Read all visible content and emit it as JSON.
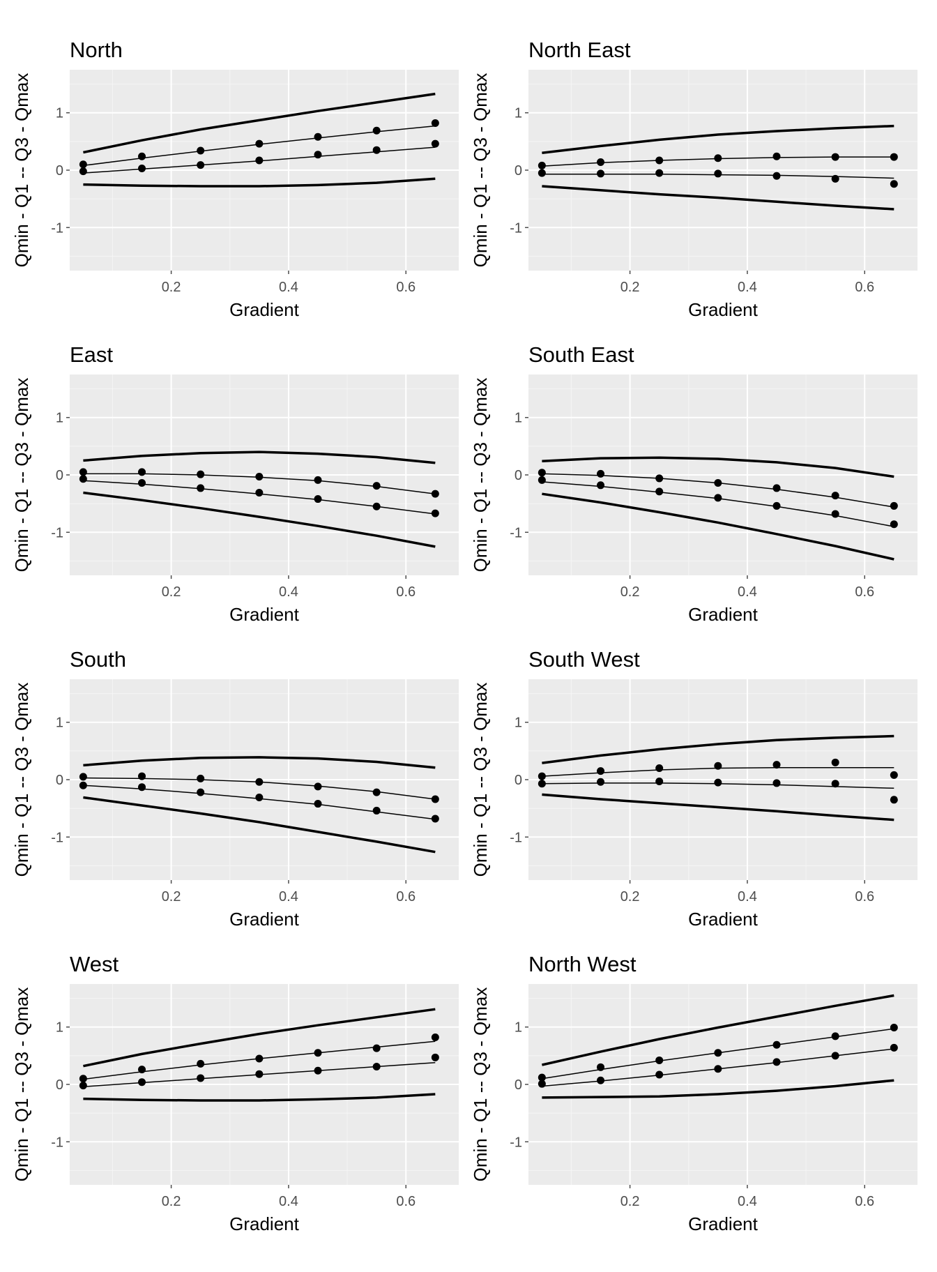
{
  "colors": {
    "panel_background": "#ebebeb",
    "grid_major": "#ffffff",
    "grid_minor": "#f5f5f5",
    "tick_text": "#4d4d4d",
    "ink": "#000000"
  },
  "chart_data": [
    {
      "type": "line",
      "title": "North",
      "xlabel": "Gradient",
      "ylabel": "Qmin - Q1 -- Q3 - Qmax",
      "xlim": [
        0.027,
        0.69
      ],
      "ylim": [
        -1.75,
        1.75
      ],
      "xticks": [
        0.2,
        0.4,
        0.6
      ],
      "yticks": [
        -1,
        0,
        1
      ],
      "grid": true,
      "curves": {
        "x": [
          0.05,
          0.15,
          0.25,
          0.35,
          0.45,
          0.55,
          0.65
        ],
        "qmax": [
          0.31,
          0.52,
          0.71,
          0.87,
          1.03,
          1.18,
          1.33
        ],
        "q3": [
          0.08,
          0.21,
          0.33,
          0.45,
          0.56,
          0.67,
          0.77
        ],
        "q1": [
          -0.05,
          0.02,
          0.09,
          0.16,
          0.24,
          0.32,
          0.4
        ],
        "qmin": [
          -0.25,
          -0.27,
          -0.28,
          -0.28,
          -0.26,
          -0.22,
          -0.15
        ]
      },
      "points_q3": {
        "x": [
          0.05,
          0.15,
          0.25,
          0.35,
          0.45,
          0.55,
          0.65
        ],
        "y": [
          0.1,
          0.24,
          0.34,
          0.46,
          0.58,
          0.69,
          0.82
        ]
      },
      "points_q1": {
        "x": [
          0.05,
          0.15,
          0.25,
          0.35,
          0.45,
          0.55,
          0.65
        ],
        "y": [
          -0.02,
          0.03,
          0.09,
          0.17,
          0.27,
          0.35,
          0.46
        ]
      }
    },
    {
      "type": "line",
      "title": "North East",
      "xlabel": "Gradient",
      "ylabel": "Qmin - Q1 -- Q3 - Qmax",
      "xlim": [
        0.027,
        0.69
      ],
      "ylim": [
        -1.75,
        1.75
      ],
      "xticks": [
        0.2,
        0.4,
        0.6
      ],
      "yticks": [
        -1,
        0,
        1
      ],
      "grid": true,
      "curves": {
        "x": [
          0.05,
          0.15,
          0.25,
          0.35,
          0.45,
          0.55,
          0.65
        ],
        "qmax": [
          0.3,
          0.42,
          0.53,
          0.62,
          0.68,
          0.73,
          0.77
        ],
        "q3": [
          0.07,
          0.13,
          0.17,
          0.2,
          0.22,
          0.23,
          0.23
        ],
        "q1": [
          -0.07,
          -0.07,
          -0.07,
          -0.08,
          -0.09,
          -0.11,
          -0.14
        ],
        "qmin": [
          -0.28,
          -0.35,
          -0.42,
          -0.48,
          -0.55,
          -0.62,
          -0.68
        ]
      },
      "points_q3": {
        "x": [
          0.05,
          0.15,
          0.25,
          0.35,
          0.45,
          0.55,
          0.65
        ],
        "y": [
          0.08,
          0.14,
          0.17,
          0.21,
          0.24,
          0.23,
          0.23
        ]
      },
      "points_q1": {
        "x": [
          0.05,
          0.15,
          0.25,
          0.35,
          0.45,
          0.55,
          0.65
        ],
        "y": [
          -0.05,
          -0.06,
          -0.05,
          -0.06,
          -0.1,
          -0.15,
          -0.24
        ]
      }
    },
    {
      "type": "line",
      "title": "East",
      "xlabel": "Gradient",
      "ylabel": "Qmin - Q1 -- Q3 - Qmax",
      "xlim": [
        0.027,
        0.69
      ],
      "ylim": [
        -1.75,
        1.75
      ],
      "xticks": [
        0.2,
        0.4,
        0.6
      ],
      "yticks": [
        -1,
        0,
        1
      ],
      "grid": true,
      "curves": {
        "x": [
          0.05,
          0.15,
          0.25,
          0.35,
          0.45,
          0.55,
          0.65
        ],
        "qmax": [
          0.25,
          0.33,
          0.38,
          0.4,
          0.37,
          0.31,
          0.21
        ],
        "q3": [
          0.02,
          0.02,
          0.0,
          -0.04,
          -0.1,
          -0.2,
          -0.33
        ],
        "q1": [
          -0.1,
          -0.16,
          -0.24,
          -0.33,
          -0.43,
          -0.55,
          -0.68
        ],
        "qmin": [
          -0.31,
          -0.44,
          -0.58,
          -0.73,
          -0.89,
          -1.06,
          -1.25
        ]
      },
      "points_q3": {
        "x": [
          0.05,
          0.15,
          0.25,
          0.35,
          0.45,
          0.55,
          0.65
        ],
        "y": [
          0.05,
          0.05,
          0.01,
          -0.03,
          -0.09,
          -0.19,
          -0.33
        ]
      },
      "points_q1": {
        "x": [
          0.05,
          0.15,
          0.25,
          0.35,
          0.45,
          0.55,
          0.65
        ],
        "y": [
          -0.07,
          -0.14,
          -0.23,
          -0.31,
          -0.42,
          -0.55,
          -0.67
        ]
      }
    },
    {
      "type": "line",
      "title": "South East",
      "xlabel": "Gradient",
      "ylabel": "Qmin - Q1 -- Q3 - Qmax",
      "xlim": [
        0.027,
        0.69
      ],
      "ylim": [
        -1.75,
        1.75
      ],
      "xticks": [
        0.2,
        0.4,
        0.6
      ],
      "yticks": [
        -1,
        0,
        1
      ],
      "grid": true,
      "curves": {
        "x": [
          0.05,
          0.15,
          0.25,
          0.35,
          0.45,
          0.55,
          0.65
        ],
        "qmax": [
          0.24,
          0.29,
          0.3,
          0.28,
          0.22,
          0.12,
          -0.03
        ],
        "q3": [
          0.02,
          -0.01,
          -0.06,
          -0.14,
          -0.25,
          -0.39,
          -0.56
        ],
        "q1": [
          -0.12,
          -0.2,
          -0.3,
          -0.41,
          -0.55,
          -0.71,
          -0.9
        ],
        "qmin": [
          -0.33,
          -0.48,
          -0.65,
          -0.83,
          -1.03,
          -1.24,
          -1.47
        ]
      },
      "points_q3": {
        "x": [
          0.05,
          0.15,
          0.25,
          0.35,
          0.45,
          0.55,
          0.65
        ],
        "y": [
          0.04,
          0.02,
          -0.06,
          -0.14,
          -0.23,
          -0.36,
          -0.54
        ]
      },
      "points_q1": {
        "x": [
          0.05,
          0.15,
          0.25,
          0.35,
          0.45,
          0.55,
          0.65
        ],
        "y": [
          -0.09,
          -0.18,
          -0.29,
          -0.4,
          -0.54,
          -0.68,
          -0.86
        ]
      }
    },
    {
      "type": "line",
      "title": "South",
      "xlabel": "Gradient",
      "ylabel": "Qmin - Q1 -- Q3 - Qmax",
      "xlim": [
        0.027,
        0.69
      ],
      "ylim": [
        -1.75,
        1.75
      ],
      "xticks": [
        0.2,
        0.4,
        0.6
      ],
      "yticks": [
        -1,
        0,
        1
      ],
      "grid": true,
      "curves": {
        "x": [
          0.05,
          0.15,
          0.25,
          0.35,
          0.45,
          0.55,
          0.65
        ],
        "qmax": [
          0.25,
          0.33,
          0.38,
          0.39,
          0.37,
          0.31,
          0.21
        ],
        "q3": [
          0.03,
          0.02,
          0.0,
          -0.04,
          -0.11,
          -0.21,
          -0.34
        ],
        "q1": [
          -0.1,
          -0.16,
          -0.24,
          -0.33,
          -0.43,
          -0.56,
          -0.69
        ],
        "qmin": [
          -0.31,
          -0.45,
          -0.59,
          -0.74,
          -0.91,
          -1.08,
          -1.26
        ]
      },
      "points_q3": {
        "x": [
          0.05,
          0.15,
          0.25,
          0.35,
          0.45,
          0.55,
          0.65
        ],
        "y": [
          0.05,
          0.06,
          0.02,
          -0.04,
          -0.12,
          -0.22,
          -0.34
        ]
      },
      "points_q1": {
        "x": [
          0.05,
          0.15,
          0.25,
          0.35,
          0.45,
          0.55,
          0.65
        ],
        "y": [
          -0.1,
          -0.13,
          -0.22,
          -0.31,
          -0.42,
          -0.54,
          -0.68
        ]
      }
    },
    {
      "type": "line",
      "title": "South West",
      "xlabel": "Gradient",
      "ylabel": "Qmin - Q1 -- Q3 - Qmax",
      "xlim": [
        0.027,
        0.69
      ],
      "ylim": [
        -1.75,
        1.75
      ],
      "xticks": [
        0.2,
        0.4,
        0.6
      ],
      "yticks": [
        -1,
        0,
        1
      ],
      "grid": true,
      "curves": {
        "x": [
          0.05,
          0.15,
          0.25,
          0.35,
          0.45,
          0.55,
          0.65
        ],
        "qmax": [
          0.29,
          0.42,
          0.53,
          0.62,
          0.69,
          0.73,
          0.76
        ],
        "q3": [
          0.06,
          0.12,
          0.17,
          0.2,
          0.21,
          0.21,
          0.21
        ],
        "q1": [
          -0.07,
          -0.06,
          -0.06,
          -0.07,
          -0.09,
          -0.12,
          -0.15
        ],
        "qmin": [
          -0.26,
          -0.34,
          -0.41,
          -0.48,
          -0.55,
          -0.63,
          -0.7
        ]
      },
      "points_q3": {
        "x": [
          0.05,
          0.15,
          0.25,
          0.35,
          0.45,
          0.55,
          0.65
        ],
        "y": [
          0.06,
          0.15,
          0.2,
          0.24,
          0.26,
          0.3,
          0.08
        ]
      },
      "points_q1": {
        "x": [
          0.05,
          0.15,
          0.25,
          0.35,
          0.45,
          0.55,
          0.65
        ],
        "y": [
          -0.07,
          -0.04,
          -0.03,
          -0.05,
          -0.06,
          -0.07,
          -0.35
        ]
      }
    },
    {
      "type": "line",
      "title": "West",
      "xlabel": "Gradient",
      "ylabel": "Qmin - Q1 -- Q3 - Qmax",
      "xlim": [
        0.027,
        0.69
      ],
      "ylim": [
        -1.75,
        1.75
      ],
      "xticks": [
        0.2,
        0.4,
        0.6
      ],
      "yticks": [
        -1,
        0,
        1
      ],
      "grid": true,
      "curves": {
        "x": [
          0.05,
          0.15,
          0.25,
          0.35,
          0.45,
          0.55,
          0.65
        ],
        "qmax": [
          0.32,
          0.53,
          0.71,
          0.88,
          1.03,
          1.17,
          1.31
        ],
        "q3": [
          0.09,
          0.22,
          0.34,
          0.45,
          0.55,
          0.65,
          0.75
        ],
        "q1": [
          -0.04,
          0.03,
          0.1,
          0.17,
          0.24,
          0.31,
          0.38
        ],
        "qmin": [
          -0.25,
          -0.27,
          -0.28,
          -0.28,
          -0.26,
          -0.23,
          -0.17
        ]
      },
      "points_q3": {
        "x": [
          0.05,
          0.15,
          0.25,
          0.35,
          0.45,
          0.55,
          0.65
        ],
        "y": [
          0.1,
          0.26,
          0.36,
          0.45,
          0.55,
          0.63,
          0.82
        ]
      },
      "points_q1": {
        "x": [
          0.05,
          0.15,
          0.25,
          0.35,
          0.45,
          0.55,
          0.65
        ],
        "y": [
          -0.02,
          0.04,
          0.11,
          0.18,
          0.24,
          0.31,
          0.47
        ]
      }
    },
    {
      "type": "line",
      "title": "North West",
      "xlabel": "Gradient",
      "ylabel": "Qmin - Q1 -- Q3 - Qmax",
      "xlim": [
        0.027,
        0.69
      ],
      "ylim": [
        -1.75,
        1.75
      ],
      "xticks": [
        0.2,
        0.4,
        0.6
      ],
      "yticks": [
        -1,
        0,
        1
      ],
      "grid": true,
      "curves": {
        "x": [
          0.05,
          0.15,
          0.25,
          0.35,
          0.45,
          0.55,
          0.65
        ],
        "qmax": [
          0.34,
          0.57,
          0.79,
          0.99,
          1.18,
          1.37,
          1.55
        ],
        "q3": [
          0.1,
          0.26,
          0.41,
          0.55,
          0.69,
          0.83,
          0.97
        ],
        "q1": [
          -0.03,
          0.06,
          0.16,
          0.27,
          0.38,
          0.5,
          0.62
        ],
        "qmin": [
          -0.23,
          -0.22,
          -0.21,
          -0.17,
          -0.11,
          -0.03,
          0.07
        ]
      },
      "points_q3": {
        "x": [
          0.05,
          0.15,
          0.25,
          0.35,
          0.45,
          0.55,
          0.65
        ],
        "y": [
          0.12,
          0.3,
          0.42,
          0.55,
          0.69,
          0.84,
          0.99
        ]
      },
      "points_q1": {
        "x": [
          0.05,
          0.15,
          0.25,
          0.35,
          0.45,
          0.55,
          0.65
        ],
        "y": [
          0.01,
          0.07,
          0.17,
          0.27,
          0.39,
          0.5,
          0.64
        ]
      }
    }
  ]
}
